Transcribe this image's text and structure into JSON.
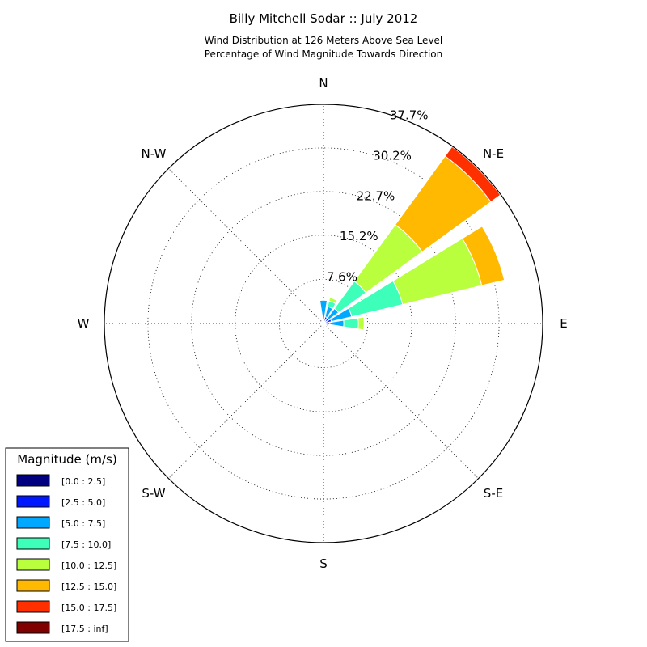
{
  "chart_data": {
    "type": "windrose",
    "title": "Billy Mitchell Sodar :: July 2012",
    "subtitle_lines": [
      "Wind Distribution at 126 Meters Above Sea Level",
      "Percentage of Wind Magnitude Towards Direction"
    ],
    "directions": [
      "N",
      "N-E",
      "E",
      "S-E",
      "S",
      "S-W",
      "W",
      "N-W"
    ],
    "ring_labels": [
      "7.6%",
      "15.2%",
      "22.7%",
      "30.2%",
      "37.7%"
    ],
    "ring_values": [
      7.6,
      15.2,
      22.7,
      30.2,
      37.7
    ],
    "rmax": 37.7,
    "legend": {
      "title": "Magnitude (m/s)",
      "placement": "lower-left",
      "bins": [
        {
          "label": "[0.0 : 2.5]",
          "color": "#000080"
        },
        {
          "label": "[2.5 : 5.0]",
          "color": "#0018ff"
        },
        {
          "label": "[5.0 : 7.5]",
          "color": "#00a8ff"
        },
        {
          "label": "[7.5 : 10.0]",
          "color": "#3dffb9"
        },
        {
          "label": "[10.0 : 12.5]",
          "color": "#b9ff3d"
        },
        {
          "label": "[12.5 : 15.0]",
          "color": "#ffb900"
        },
        {
          "label": "[15.0 : 17.5]",
          "color": "#ff3000"
        },
        {
          "label": "[17.5 : inf]",
          "color": "#800000"
        }
      ]
    },
    "sectors": [
      {
        "direction_deg": 0,
        "cumulative": [
          0.2,
          0.6,
          4.0,
          4.0,
          4.0,
          4.0,
          4.0,
          4.0
        ]
      },
      {
        "direction_deg": 22.5,
        "cumulative": [
          0.3,
          1.2,
          3.0,
          4.0,
          4.6,
          4.6,
          4.6,
          4.6
        ]
      },
      {
        "direction_deg": 45,
        "cumulative": [
          0.3,
          1.1,
          3.2,
          9.0,
          21.0,
          35.6,
          37.6,
          37.6
        ]
      },
      {
        "direction_deg": 67.5,
        "cumulative": [
          0.4,
          1.4,
          5.0,
          14.0,
          28.0,
          32.0,
          32.0,
          32.0
        ]
      },
      {
        "direction_deg": 90,
        "cumulative": [
          0.4,
          1.1,
          3.5,
          6.0,
          7.0,
          7.0,
          7.0,
          7.0
        ]
      },
      {
        "direction_deg": 112.5,
        "cumulative": [
          0.2,
          0.5,
          0.9,
          0.9,
          0.9,
          0.9,
          0.9,
          0.9
        ]
      },
      {
        "direction_deg": 135,
        "cumulative": [
          0.2,
          0.4,
          0.6,
          0.6,
          0.6,
          0.6,
          0.6,
          0.6
        ]
      },
      {
        "direction_deg": 157.5,
        "cumulative": [
          0.2,
          0.4,
          0.4,
          0.4,
          0.4,
          0.4,
          0.4,
          0.4
        ]
      },
      {
        "direction_deg": 180,
        "cumulative": [
          0.2,
          0.6,
          0.6,
          0.6,
          0.6,
          0.6,
          0.6,
          0.6
        ]
      },
      {
        "direction_deg": 202.5,
        "cumulative": [
          0.2,
          0.5,
          0.5,
          0.5,
          0.5,
          0.5,
          0.5,
          0.5
        ]
      },
      {
        "direction_deg": 225,
        "cumulative": [
          0.2,
          0.4,
          0.4,
          0.4,
          0.4,
          0.4,
          0.4,
          0.4
        ]
      },
      {
        "direction_deg": 247.5,
        "cumulative": [
          0.2,
          0.3,
          0.3,
          0.3,
          0.3,
          0.3,
          0.3,
          0.3
        ]
      },
      {
        "direction_deg": 270,
        "cumulative": [
          0.1,
          0.3,
          0.3,
          0.3,
          0.3,
          0.3,
          0.3,
          0.3
        ]
      },
      {
        "direction_deg": 292.5,
        "cumulative": [
          0.1,
          0.3,
          0.3,
          0.3,
          0.3,
          0.3,
          0.3,
          0.3
        ]
      },
      {
        "direction_deg": 315,
        "cumulative": [
          0.1,
          0.3,
          0.3,
          0.3,
          0.3,
          0.3,
          0.3,
          0.3
        ]
      },
      {
        "direction_deg": 337.5,
        "cumulative": [
          0.2,
          0.5,
          0.5,
          0.5,
          0.5,
          0.5,
          0.5,
          0.5
        ]
      }
    ]
  }
}
